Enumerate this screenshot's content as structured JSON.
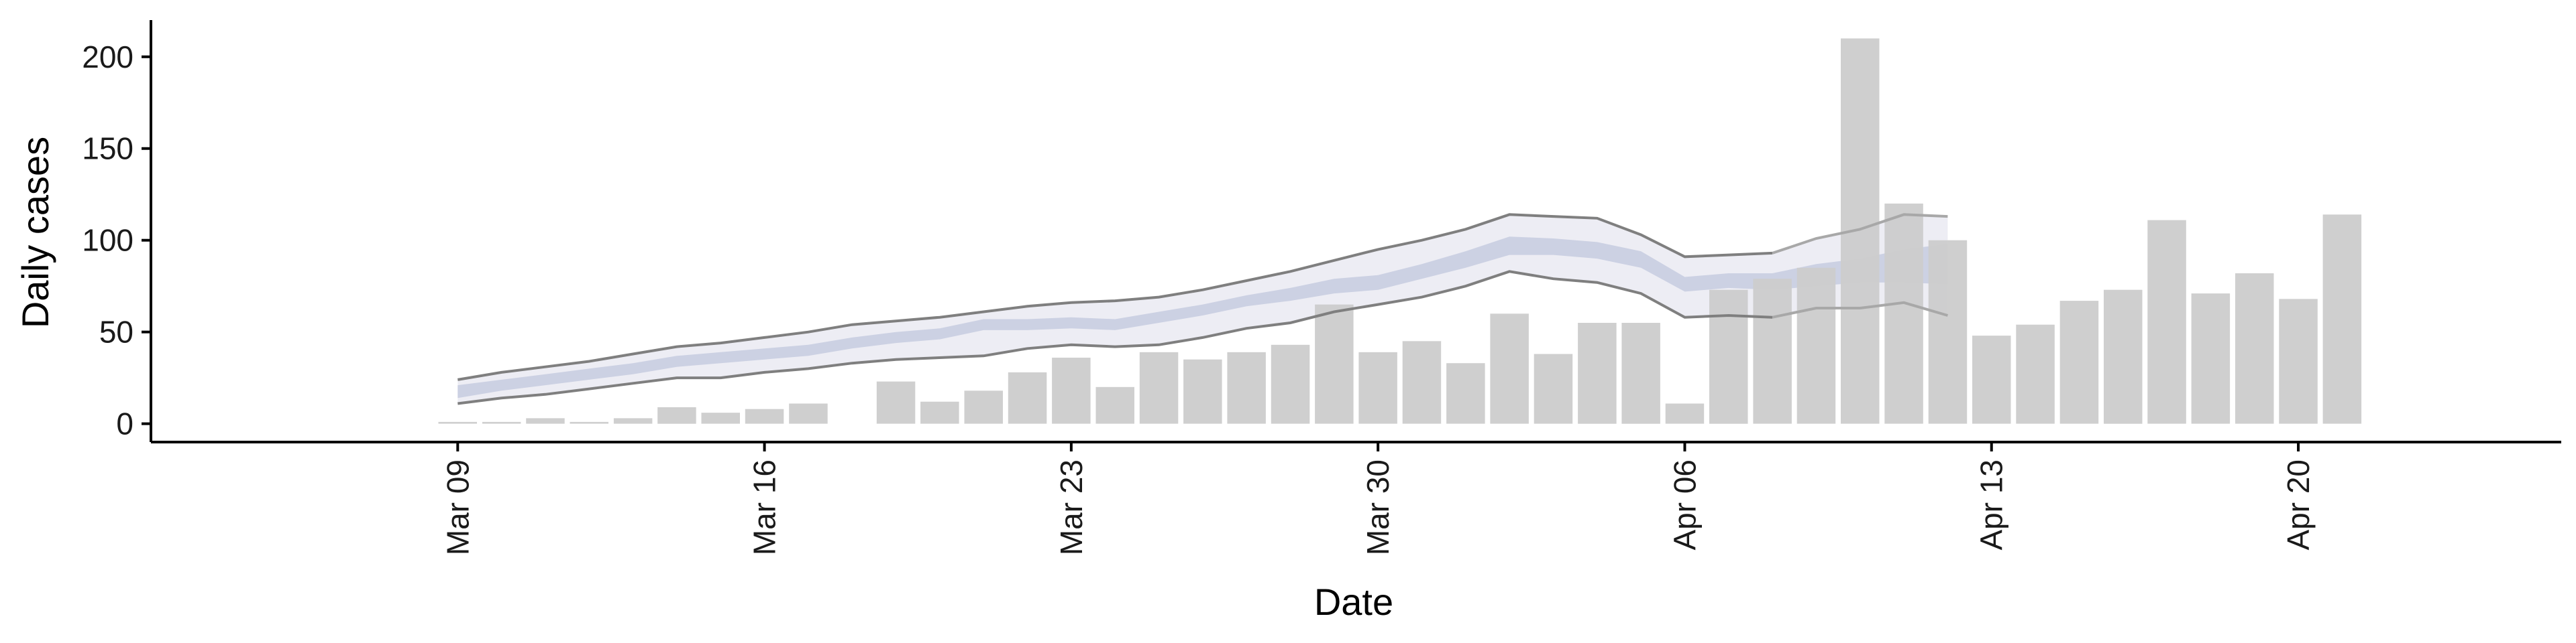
{
  "chart_data": {
    "type": "bar",
    "title": "",
    "xlabel": "Date",
    "ylabel": "Daily cases",
    "ylim": [
      -10,
      220
    ],
    "xlim": [
      "2020-03-02",
      "2020-04-26"
    ],
    "yticks": [
      0,
      50,
      100,
      150,
      200
    ],
    "xticks": [
      {
        "date": "2020-03-09",
        "label": "Mar 09"
      },
      {
        "date": "2020-03-16",
        "label": "Mar 16"
      },
      {
        "date": "2020-03-23",
        "label": "Mar 23"
      },
      {
        "date": "2020-03-30",
        "label": "Mar 30"
      },
      {
        "date": "2020-04-06",
        "label": "Apr 06"
      },
      {
        "date": "2020-04-13",
        "label": "Apr 13"
      },
      {
        "date": "2020-04-20",
        "label": "Apr 20"
      }
    ],
    "grid": false,
    "legend": "none",
    "bars": {
      "name": "",
      "dates": [
        "2020-03-09",
        "2020-03-10",
        "2020-03-11",
        "2020-03-12",
        "2020-03-13",
        "2020-03-14",
        "2020-03-15",
        "2020-03-16",
        "2020-03-17",
        "2020-03-18",
        "2020-03-19",
        "2020-03-20",
        "2020-03-21",
        "2020-03-22",
        "2020-03-23",
        "2020-03-24",
        "2020-03-25",
        "2020-03-26",
        "2020-03-27",
        "2020-03-28",
        "2020-03-29",
        "2020-03-30",
        "2020-03-31",
        "2020-04-01",
        "2020-04-02",
        "2020-04-03",
        "2020-04-04",
        "2020-04-05",
        "2020-04-06",
        "2020-04-07",
        "2020-04-08",
        "2020-04-09",
        "2020-04-10",
        "2020-04-11",
        "2020-04-12",
        "2020-04-13",
        "2020-04-14",
        "2020-04-15",
        "2020-04-16",
        "2020-04-17",
        "2020-04-18",
        "2020-04-19",
        "2020-04-20",
        "2020-04-21"
      ],
      "values": [
        1,
        1,
        3,
        1,
        3,
        9,
        6,
        8,
        11,
        0,
        23,
        12,
        18,
        28,
        36,
        20,
        39,
        35,
        39,
        43,
        65,
        39,
        45,
        33,
        60,
        38,
        55,
        55,
        11,
        73,
        79,
        85,
        210,
        120,
        100,
        48,
        54,
        67,
        73,
        111,
        71,
        82,
        68,
        114
      ]
    },
    "estimate": {
      "dates": [
        "2020-03-09",
        "2020-03-10",
        "2020-03-11",
        "2020-03-12",
        "2020-03-13",
        "2020-03-14",
        "2020-03-15",
        "2020-03-16",
        "2020-03-17",
        "2020-03-18",
        "2020-03-19",
        "2020-03-20",
        "2020-03-21",
        "2020-03-22",
        "2020-03-23",
        "2020-03-24",
        "2020-03-25",
        "2020-03-26",
        "2020-03-27",
        "2020-03-28",
        "2020-03-29",
        "2020-03-30",
        "2020-03-31",
        "2020-04-01",
        "2020-04-02",
        "2020-04-03",
        "2020-04-04",
        "2020-04-05",
        "2020-04-06",
        "2020-04-07",
        "2020-04-08",
        "2020-04-09",
        "2020-04-10",
        "2020-04-11",
        "2020-04-12"
      ],
      "ci90_lower": [
        11,
        14,
        16,
        19,
        22,
        25,
        25,
        28,
        30,
        33,
        35,
        36,
        37,
        41,
        43,
        42,
        43,
        47,
        52,
        55,
        61,
        65,
        69,
        75,
        83,
        79,
        77,
        71,
        58,
        59,
        58,
        63,
        63,
        66,
        59
      ],
      "ci90_upper": [
        24,
        28,
        31,
        34,
        38,
        42,
        44,
        47,
        50,
        54,
        56,
        58,
        61,
        64,
        66,
        67,
        69,
        73,
        78,
        83,
        89,
        95,
        100,
        106,
        114,
        113,
        112,
        103,
        91,
        92,
        93,
        101,
        106,
        114,
        113
      ],
      "ci50_lower": [
        14,
        18,
        21,
        24,
        27,
        31,
        33,
        35,
        37,
        41,
        44,
        46,
        51,
        51,
        52,
        51,
        55,
        59,
        64,
        67,
        71,
        73,
        79,
        85,
        92,
        92,
        90,
        85,
        72,
        74,
        73,
        75,
        77,
        77,
        76
      ],
      "ci50_upper": [
        21,
        24,
        27,
        30,
        33,
        37,
        39,
        41,
        43,
        47,
        50,
        52,
        57,
        57,
        58,
        57,
        61,
        65,
        70,
        74,
        79,
        81,
        87,
        94,
        102,
        101,
        99,
        94,
        80,
        82,
        82,
        87,
        90,
        95,
        98
      ],
      "colors": {
        "ci90_fill": "#e8e9f1",
        "ci50_fill": "#c8cde1",
        "ci90_line": "#7f7f7f",
        "projection_line": "#a8a8a8"
      }
    },
    "colors": {
      "bar": "#cccccc",
      "axis": "#000000"
    }
  }
}
